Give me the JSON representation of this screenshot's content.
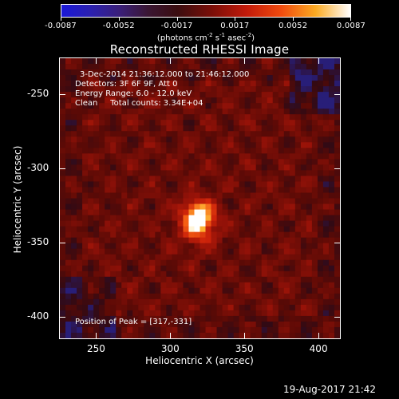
{
  "colorbar": {
    "tick_labels": [
      "-0.0087",
      "-0.0052",
      "-0.0017",
      "0.0017",
      "0.0052",
      "0.0087"
    ],
    "unit_label": "(photons cm",
    "unit_exp1": "-2",
    "unit_mid": " s",
    "unit_exp2": "-1",
    "unit_mid2": " asec",
    "unit_exp3": "-2",
    "unit_end": ")"
  },
  "title": "Reconstructed RHESSI Image",
  "info": {
    "line1": "3-Dec-2014 21:36:12.000 to 21:46:12.000",
    "line2": "Detectors: 3F 6F 9F, Att 0",
    "line3": "Energy Range: 6.0 - 12.0 keV",
    "line4": "Clean     Total counts: 3.34E+04"
  },
  "peak_text": "Position of Peak = [317,-331]",
  "axes": {
    "xlabel": "Heliocentric X (arcsec)",
    "ylabel": "Heliocentric Y (arcsec)",
    "xticks": [
      "250",
      "300",
      "350",
      "400"
    ],
    "yticks": [
      "-250",
      "-300",
      "-350",
      "-400"
    ]
  },
  "timestamp": "19-Aug-2017 21:42",
  "image_data": {
    "type": "heatmap",
    "x_range_arcsec": [
      225,
      415
    ],
    "y_range_arcsec": [
      -225,
      -415
    ],
    "peak_arcsec": [
      317,
      -331
    ],
    "colormap": [
      "#1a18d8",
      "#3a1f7a",
      "#3a0d10",
      "#7a0e08",
      "#c21a0a",
      "#f04a0e",
      "#fbaa22",
      "#ffffff"
    ],
    "background_color": "#5a0a06"
  }
}
